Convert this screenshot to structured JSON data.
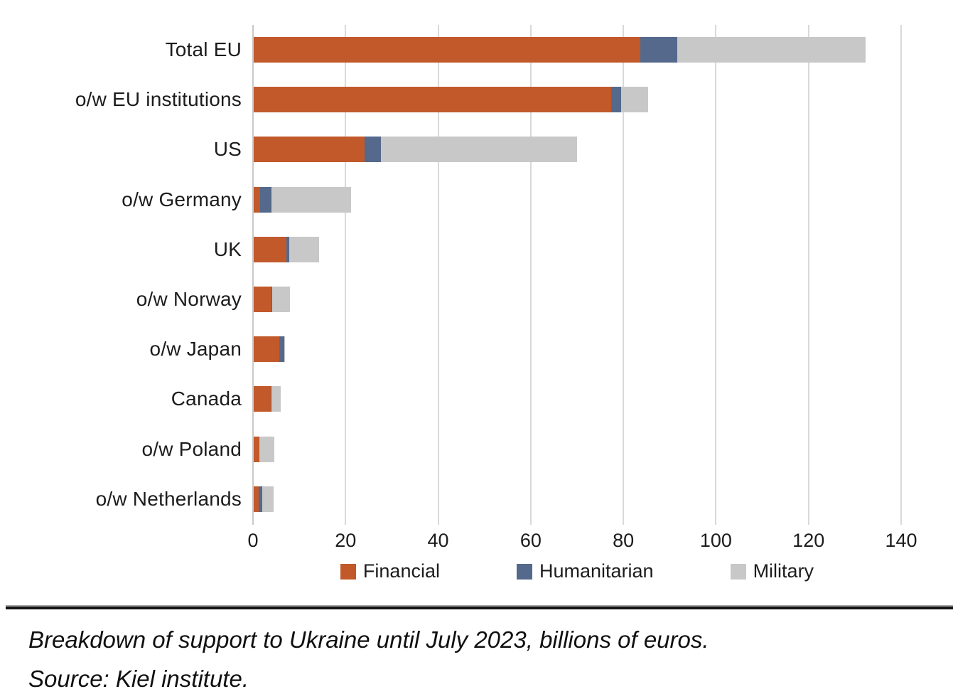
{
  "chart_data": {
    "type": "bar",
    "orientation": "horizontal",
    "stacked": true,
    "categories": [
      "Total EU",
      "o/w EU institutions",
      "US",
      "o/w Germany",
      "UK",
      "o/w Norway",
      "o/w Japan",
      "Canada",
      "o/w Poland",
      "o/w Netherlands"
    ],
    "series": [
      {
        "name": "Financial",
        "color": "#C2592B",
        "values": [
          83.5,
          77.2,
          24.0,
          1.4,
          7.1,
          3.8,
          5.6,
          3.7,
          1.2,
          1.1
        ]
      },
      {
        "name": "Humanitarian",
        "color": "#54698B",
        "values": [
          8.0,
          2.2,
          3.5,
          2.4,
          0.5,
          0.2,
          1.0,
          0.2,
          0.1,
          0.7
        ]
      },
      {
        "name": "Military",
        "color": "#C8C8C8",
        "values": [
          40.7,
          5.8,
          42.4,
          17.3,
          6.5,
          3.8,
          0.1,
          1.9,
          3.2,
          2.5
        ]
      }
    ],
    "xlabel": "",
    "ylabel": "",
    "xlim": [
      0,
      140
    ],
    "xticks": [
      0,
      20,
      40,
      60,
      80,
      100,
      120,
      140
    ],
    "grid": "vertical",
    "gridline_color": "#D9D9D9",
    "zeroline_color": "#C9C9C9",
    "legend_position": "bottom-center"
  },
  "legend": {
    "items": [
      "Financial",
      "Humanitarian",
      "Military"
    ]
  },
  "caption": {
    "line1": "Breakdown of support to Ukraine until July 2023, billions of euros.",
    "line2": "Source: Kiel institute."
  }
}
